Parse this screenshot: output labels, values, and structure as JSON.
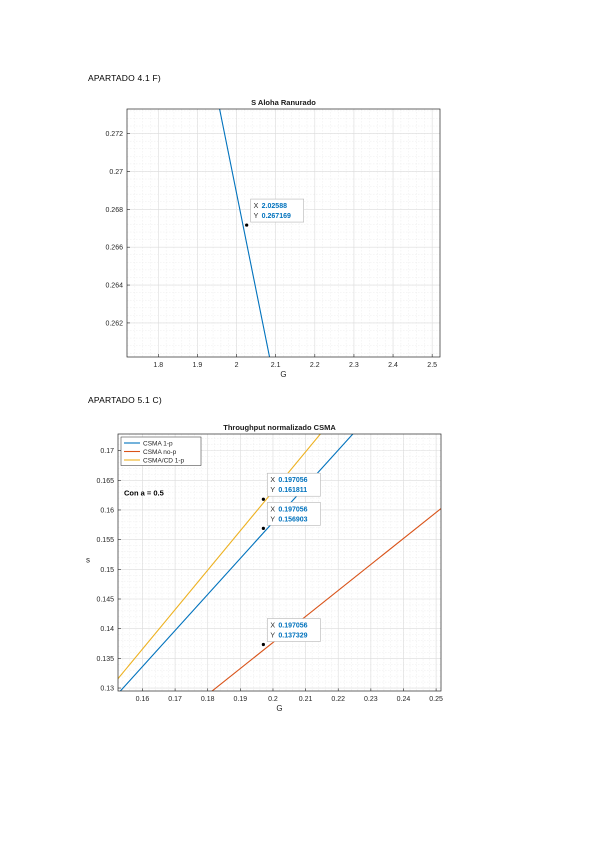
{
  "headings": {
    "first": "APARTADO 4.1 F)",
    "second": "APARTADO 5.1 C)"
  },
  "chart_data": [
    {
      "type": "line",
      "title": "S Aloha Ranurado",
      "xlabel": "G",
      "ylabel": "",
      "xlim": [
        1.72,
        2.52
      ],
      "ylim": [
        0.2602,
        0.2733
      ],
      "xticks": [
        "1.8",
        "1.9",
        "2",
        "2.1",
        "2.2",
        "2.3",
        "2.4",
        "2.5"
      ],
      "yticks": [
        "0.262",
        "0.264",
        "0.266",
        "0.268",
        "0.27",
        "0.272"
      ],
      "grid": true,
      "minor_grid": true,
      "series": [
        {
          "color": "#0072bd",
          "x": [
            1.955,
            2.085
          ],
          "y": [
            0.27347,
            0.26013
          ]
        }
      ],
      "datatips": [
        {
          "x": "2.02588",
          "y": "0.267169",
          "px": 2.02588,
          "py": 0.267169,
          "box": "right"
        }
      ]
    },
    {
      "type": "line",
      "title": "Throughput normalizado CSMA",
      "xlabel": "G",
      "ylabel": "s",
      "xlim": [
        0.1525,
        0.2515
      ],
      "ylim": [
        0.1295,
        0.1728
      ],
      "xticks": [
        "0.16",
        "0.17",
        "0.18",
        "0.19",
        "0.2",
        "0.21",
        "0.22",
        "0.23",
        "0.24",
        "0.25"
      ],
      "yticks": [
        "0.13",
        "0.135",
        "0.14",
        "0.145",
        "0.15",
        "0.155",
        "0.16",
        "0.165",
        "0.17"
      ],
      "grid": true,
      "minor_grid": true,
      "legend": {
        "position": "top-left",
        "entries": [
          "CSMA 1-p",
          "CSMA no-p",
          "CSMA/CD 1-p"
        ]
      },
      "annotation": "Con a = 0.5",
      "series": [
        {
          "name": "CSMA 1-p",
          "color": "#0072bd",
          "x": [
            0.1525,
            0.225
          ],
          "y": [
            0.12906,
            0.17312
          ]
        },
        {
          "name": "CSMA no-p",
          "color": "#d95319",
          "x": [
            0.18,
            0.2515
          ],
          "y": [
            0.12891,
            0.16024
          ]
        },
        {
          "name": "CSMA/CD 1-p",
          "color": "#edb120",
          "x": [
            0.1525,
            0.215
          ],
          "y": [
            0.13158,
            0.17312
          ]
        }
      ],
      "datatips": [
        {
          "x": "0.197056",
          "y": "0.161811",
          "px": 0.197056,
          "py": 0.161811,
          "box": "right"
        },
        {
          "x": "0.197056",
          "y": "0.156903",
          "px": 0.197056,
          "py": 0.156903,
          "box": "right"
        },
        {
          "x": "0.197056",
          "y": "0.137329",
          "px": 0.197056,
          "py": 0.137329,
          "box": "right"
        }
      ]
    }
  ]
}
